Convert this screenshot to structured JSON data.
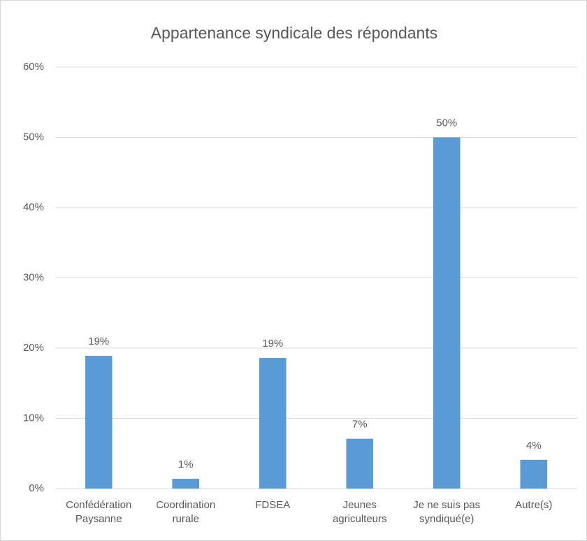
{
  "chart_data": {
    "type": "bar",
    "title": "Appartenance syndicale des répondants",
    "categories": [
      "Confédération Paysanne",
      "Coordination rurale",
      "FDSEA",
      "Jeunes agriculteurs",
      "Je ne suis pas syndiqué(e)",
      "Autre(s)"
    ],
    "values": [
      18.9,
      1.4,
      18.6,
      7.1,
      50,
      4.1
    ],
    "value_labels": [
      "19%",
      "1%",
      "19%",
      "7%",
      "50%",
      "4%"
    ],
    "color": "#5b9bd5",
    "ylim": [
      0,
      60
    ],
    "yticks": [
      {
        "value": 0,
        "label": "0%"
      },
      {
        "value": 10,
        "label": "10%"
      },
      {
        "value": 20,
        "label": "20%"
      },
      {
        "value": 30,
        "label": "30%"
      },
      {
        "value": 40,
        "label": "40%"
      },
      {
        "value": 50,
        "label": "50%"
      },
      {
        "value": 60,
        "label": "60%"
      }
    ],
    "grid": true
  }
}
